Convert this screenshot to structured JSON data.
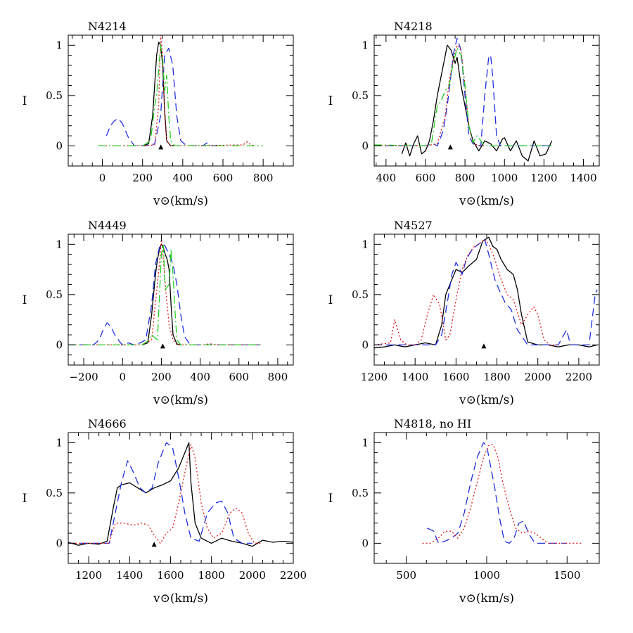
{
  "colors": {
    "black": "#000000",
    "blue": "#1f2fe0",
    "red": "#e01818",
    "green": "#22d022"
  },
  "line_styles": {
    "black": "solid",
    "blue": "long-dash",
    "red": "dotted",
    "green": "dash-dot"
  },
  "chart_data": [
    {
      "type": "line",
      "title": "N4214",
      "xlabel": "v⊙(km/s)",
      "ylabel": "I",
      "xlim": [
        -170,
        950
      ],
      "ylim": [
        -0.2,
        1.1
      ],
      "xticks": [
        0,
        200,
        400,
        600,
        800
      ],
      "yticks": [
        0,
        0.5,
        1
      ],
      "marker_x": 291,
      "series": [
        {
          "color": "black",
          "x": [
            200,
            230,
            250,
            270,
            280,
            290,
            300,
            310,
            320,
            340,
            360
          ],
          "y": [
            0,
            0.02,
            0.3,
            0.9,
            1.03,
            1.0,
            0.8,
            0.35,
            0.05,
            0,
            0
          ]
        },
        {
          "color": "blue",
          "x": [
            20,
            40,
            60,
            80,
            100,
            130,
            160,
            230,
            260,
            290,
            310,
            330,
            350,
            370,
            390,
            420,
            500,
            520,
            540,
            600
          ],
          "y": [
            0.1,
            0.2,
            0.25,
            0.27,
            0.22,
            0.08,
            0,
            0,
            0.02,
            0.3,
            0.9,
            0.97,
            0.8,
            0.3,
            0.05,
            0,
            0,
            0.03,
            0,
            0
          ]
        },
        {
          "color": "red",
          "x": [
            -20,
            200,
            260,
            280,
            290,
            300,
            310,
            320,
            340,
            400,
            700,
            720,
            740,
            760
          ],
          "y": [
            0,
            0,
            0.01,
            0.4,
            1.1,
            0.9,
            0.3,
            0.05,
            0,
            0,
            0.01,
            0.04,
            0.01,
            0
          ]
        },
        {
          "color": "green",
          "x": [
            -20,
            200,
            240,
            260,
            270,
            290,
            300,
            310,
            320,
            330,
            340,
            360,
            400,
            800
          ],
          "y": [
            0,
            0,
            0.05,
            0.4,
            0.5,
            1.0,
            0.85,
            0.55,
            0.7,
            0.3,
            0.05,
            0,
            0,
            0
          ]
        }
      ]
    },
    {
      "type": "line",
      "title": "N4218",
      "xlabel": "v⊙(km/s)",
      "ylabel": "I",
      "xlim": [
        340,
        1480
      ],
      "ylim": [
        -0.2,
        1.1
      ],
      "xticks": [
        400,
        600,
        800,
        1000,
        1200,
        1400
      ],
      "yticks": [
        0,
        0.5,
        1
      ],
      "marker_x": 726,
      "series": [
        {
          "color": "black",
          "x": [
            480,
            500,
            520,
            540,
            560,
            580,
            600,
            620,
            640,
            660,
            680,
            700,
            710,
            730,
            750,
            760,
            780,
            800,
            820,
            840,
            870,
            900,
            930,
            960,
            990,
            1000,
            1030,
            1060,
            1090,
            1120,
            1150,
            1180,
            1210,
            1240
          ],
          "y": [
            -0.08,
            0.03,
            -0.1,
            0.02,
            0.1,
            -0.08,
            -0.05,
            0.05,
            0.25,
            0.5,
            0.7,
            0.9,
            1.0,
            0.95,
            0.82,
            0.88,
            0.6,
            0.4,
            0.2,
            0.05,
            -0.05,
            0.05,
            0.02,
            -0.05,
            0.07,
            0.08,
            -0.05,
            0.05,
            -0.1,
            -0.15,
            0.05,
            -0.1,
            -0.08,
            0.05
          ]
        },
        {
          "color": "blue",
          "x": [
            340,
            600,
            640,
            660,
            690,
            710,
            720,
            740,
            760,
            780,
            800,
            820,
            840,
            880,
            900,
            920,
            930,
            940,
            960,
            980,
            1000,
            1100,
            1240
          ],
          "y": [
            0,
            0,
            0.02,
            0,
            0.15,
            0.4,
            0.55,
            0.9,
            1.07,
            0.95,
            0.5,
            0.1,
            0.02,
            0,
            0.5,
            0.88,
            0.9,
            0.7,
            0.1,
            0,
            0,
            0,
            0
          ]
        },
        {
          "color": "red",
          "x": [
            340,
            600,
            660,
            700,
            720,
            740,
            760,
            780,
            800,
            820,
            840,
            870,
            900
          ],
          "y": [
            0,
            0,
            0.02,
            0.3,
            0.65,
            0.85,
            1.0,
            0.95,
            0.6,
            0.2,
            0.03,
            0,
            0
          ]
        },
        {
          "color": "green",
          "x": [
            340,
            600,
            630,
            660,
            680,
            700,
            720,
            740,
            760,
            780,
            800,
            820,
            840,
            860,
            880,
            900,
            1000,
            1100,
            1240
          ],
          "y": [
            0.01,
            0,
            0.02,
            0.4,
            0.45,
            0.55,
            0.6,
            0.82,
            0.97,
            0.9,
            0.6,
            0.2,
            0.03,
            0.1,
            0.05,
            0,
            0,
            0,
            0
          ]
        }
      ]
    },
    {
      "type": "line",
      "title": "N4449",
      "xlabel": "v⊙(km/s)",
      "ylabel": "I",
      "xlim": [
        -280,
        880
      ],
      "ylim": [
        -0.2,
        1.1
      ],
      "xticks": [
        -200,
        0,
        200,
        400,
        600,
        800
      ],
      "yticks": [
        0,
        0.5,
        1
      ],
      "marker_x": 207,
      "series": [
        {
          "color": "black",
          "x": [
            100,
            130,
            150,
            170,
            180,
            190,
            200,
            210,
            220,
            230,
            240,
            250,
            260,
            280,
            300
          ],
          "y": [
            0,
            0.02,
            0.3,
            0.7,
            0.85,
            0.95,
            1.0,
            0.97,
            0.9,
            0.85,
            0.75,
            0.4,
            0.1,
            0.01,
            0
          ]
        },
        {
          "color": "blue",
          "x": [
            -280,
            -150,
            -120,
            -100,
            -80,
            -60,
            -40,
            -10,
            0,
            30,
            60,
            90,
            120,
            150,
            170,
            190,
            210,
            220,
            240,
            260,
            280,
            300,
            320,
            350,
            600,
            720
          ],
          "y": [
            0,
            0,
            0.05,
            0.15,
            0.22,
            0.18,
            0.1,
            0.02,
            0,
            0.02,
            0,
            0.02,
            0.05,
            0.4,
            0.8,
            0.97,
            1.0,
            0.98,
            0.9,
            0.8,
            0.6,
            0.3,
            0.08,
            0,
            0,
            0
          ]
        },
        {
          "color": "red",
          "x": [
            -280,
            100,
            150,
            190,
            200,
            210,
            220,
            240,
            260,
            280,
            430,
            440,
            460,
            480,
            720
          ],
          "y": [
            0,
            0,
            0.05,
            0.8,
            1.05,
            0.85,
            0.6,
            0.2,
            0.05,
            0,
            0,
            0.01,
            0.01,
            0,
            0
          ]
        },
        {
          "color": "green",
          "x": [
            -280,
            100,
            130,
            150,
            180,
            200,
            210,
            220,
            240,
            250,
            260,
            270,
            280,
            300,
            720
          ],
          "y": [
            0,
            0,
            0.04,
            0.1,
            0.05,
            0.9,
            1.0,
            0.55,
            0.6,
            0.95,
            0.7,
            0.35,
            0.05,
            0,
            0
          ]
        }
      ]
    },
    {
      "type": "line",
      "title": "N4527",
      "xlabel": "v⊙(km/s)",
      "ylabel": "I",
      "xlim": [
        1200,
        2300
      ],
      "ylim": [
        -0.2,
        1.1
      ],
      "xticks": [
        1200,
        1400,
        1600,
        1800,
        2000,
        2200
      ],
      "yticks": [
        0,
        0.5,
        1
      ],
      "marker_x": 1736,
      "series": [
        {
          "color": "black",
          "x": [
            1200,
            1250,
            1300,
            1350,
            1400,
            1450,
            1500,
            1530,
            1550,
            1570,
            1600,
            1630,
            1660,
            1700,
            1730,
            1760,
            1780,
            1800,
            1820,
            1850,
            1880,
            1900,
            1920,
            1950,
            2000,
            2050,
            2100,
            2150,
            2200,
            2250,
            2290
          ],
          "y": [
            -0.03,
            -0.02,
            0,
            -0.02,
            0,
            0.02,
            0,
            0.2,
            0.5,
            0.6,
            0.75,
            0.72,
            0.78,
            0.85,
            1.03,
            1.07,
            0.98,
            0.95,
            0.85,
            0.75,
            0.7,
            0.55,
            0.3,
            0.03,
            0,
            0,
            -0.02,
            0,
            0,
            -0.02,
            0
          ]
        },
        {
          "color": "blue",
          "x": [
            1200,
            1500,
            1530,
            1560,
            1580,
            1600,
            1630,
            1650,
            1680,
            1710,
            1740,
            1760,
            1790,
            1810,
            1840,
            1870,
            1900,
            1950,
            2000,
            2100,
            2140,
            2160,
            2200,
            2250,
            2280,
            2290
          ],
          "y": [
            0,
            0,
            0.1,
            0.45,
            0.7,
            0.82,
            0.7,
            0.85,
            0.95,
            1.0,
            1.05,
            0.9,
            0.65,
            0.55,
            0.42,
            0.35,
            0.15,
            0,
            0,
            0,
            0.15,
            0,
            0,
            0,
            0.5,
            0.55
          ]
        },
        {
          "color": "red",
          "x": [
            1200,
            1280,
            1300,
            1330,
            1360,
            1400,
            1430,
            1460,
            1490,
            1520,
            1550,
            1570,
            1600,
            1630,
            1660,
            1690,
            1710,
            1740,
            1760,
            1790,
            1820,
            1850,
            1880,
            1920,
            1950,
            1980,
            2000,
            2030,
            2060,
            2100
          ],
          "y": [
            0,
            0.02,
            0.25,
            0.05,
            0,
            0,
            0.05,
            0.3,
            0.5,
            0.4,
            0.05,
            0.1,
            0.45,
            0.75,
            0.9,
            0.98,
            1.0,
            1.05,
            1.0,
            0.85,
            0.65,
            0.5,
            0.45,
            0.2,
            0.3,
            0.38,
            0.3,
            0.05,
            0,
            0
          ]
        }
      ]
    },
    {
      "type": "line",
      "title": "N4666",
      "xlabel": "v⊙(km/s)",
      "ylabel": "I",
      "xlim": [
        1100,
        2200
      ],
      "ylim": [
        -0.2,
        1.1
      ],
      "xticks": [
        1200,
        1400,
        1600,
        1800,
        2000,
        2200
      ],
      "yticks": [
        0,
        0.5,
        1
      ],
      "marker_x": 1520,
      "series": [
        {
          "color": "black",
          "x": [
            1100,
            1150,
            1200,
            1250,
            1290,
            1320,
            1340,
            1360,
            1400,
            1440,
            1480,
            1520,
            1560,
            1600,
            1640,
            1670,
            1690,
            1700,
            1720,
            1750,
            1800,
            1850,
            1900,
            1950,
            2000,
            2050,
            2100,
            2150,
            2200
          ],
          "y": [
            0.01,
            -0.02,
            0.0,
            -0.01,
            0.02,
            0.35,
            0.55,
            0.58,
            0.6,
            0.55,
            0.5,
            0.55,
            0.58,
            0.62,
            0.75,
            0.9,
            1.0,
            0.6,
            0.2,
            0.05,
            0.0,
            0.05,
            0.02,
            0.0,
            -0.03,
            0.03,
            0.01,
            0.02,
            0.01
          ]
        },
        {
          "color": "blue",
          "x": [
            1100,
            1300,
            1330,
            1360,
            1390,
            1420,
            1450,
            1480,
            1510,
            1540,
            1580,
            1610,
            1640,
            1670,
            1700,
            1740,
            1780,
            1820,
            1850,
            1880,
            1910,
            1950,
            2000
          ],
          "y": [
            0,
            0,
            0.3,
            0.6,
            0.82,
            0.7,
            0.55,
            0.5,
            0.55,
            0.8,
            1.0,
            0.95,
            0.65,
            0.3,
            0.05,
            0.02,
            0.3,
            0.4,
            0.42,
            0.3,
            0.05,
            0,
            0
          ]
        },
        {
          "color": "red",
          "x": [
            1100,
            1300,
            1330,
            1370,
            1420,
            1460,
            1490,
            1520,
            1550,
            1580,
            1610,
            1640,
            1670,
            1700,
            1720,
            1750,
            1780,
            1810,
            1850,
            1890,
            1920,
            1950,
            1980,
            2010,
            2050
          ],
          "y": [
            0,
            0,
            0.2,
            0.2,
            0.18,
            0.2,
            0.18,
            0.08,
            0.0,
            0.1,
            0.15,
            0.4,
            0.7,
            0.98,
            0.85,
            0.4,
            0.15,
            0.05,
            0.1,
            0.3,
            0.35,
            0.3,
            0.1,
            0,
            0
          ]
        }
      ]
    },
    {
      "type": "line",
      "title": "N4818, no HI",
      "xlabel": "v⊙(km/s)",
      "ylabel": "I",
      "xlim": [
        300,
        1700
      ],
      "ylim": [
        -0.2,
        1.1
      ],
      "xticks": [
        500,
        1000,
        1500
      ],
      "yticks": [
        0,
        0.5,
        1
      ],
      "marker_x": null,
      "series": [
        {
          "color": "blue",
          "x": [
            630,
            670,
            700,
            740,
            780,
            820,
            860,
            900,
            940,
            980,
            1000,
            1020,
            1050,
            1080,
            1110,
            1140,
            1170,
            1200,
            1230,
            1260,
            1300,
            1350,
            1500
          ],
          "y": [
            0.15,
            0.12,
            0,
            0.02,
            0.05,
            0.1,
            0.3,
            0.6,
            0.85,
            1.0,
            0.97,
            0.8,
            0.55,
            0.25,
            0.02,
            0,
            0.05,
            0.2,
            0.22,
            0.1,
            0,
            0,
            0
          ]
        },
        {
          "color": "red",
          "x": [
            600,
            650,
            700,
            740,
            780,
            820,
            860,
            900,
            940,
            980,
            1010,
            1040,
            1070,
            1100,
            1140,
            1180,
            1220,
            1260,
            1300,
            1340,
            1380,
            1420,
            1600
          ],
          "y": [
            0,
            0,
            0.05,
            0.12,
            0.12,
            0.05,
            0.15,
            0.35,
            0.6,
            0.85,
            0.97,
            0.98,
            0.85,
            0.6,
            0.35,
            0.15,
            0.1,
            0.12,
            0.1,
            0.05,
            0,
            0,
            0
          ]
        }
      ]
    }
  ]
}
